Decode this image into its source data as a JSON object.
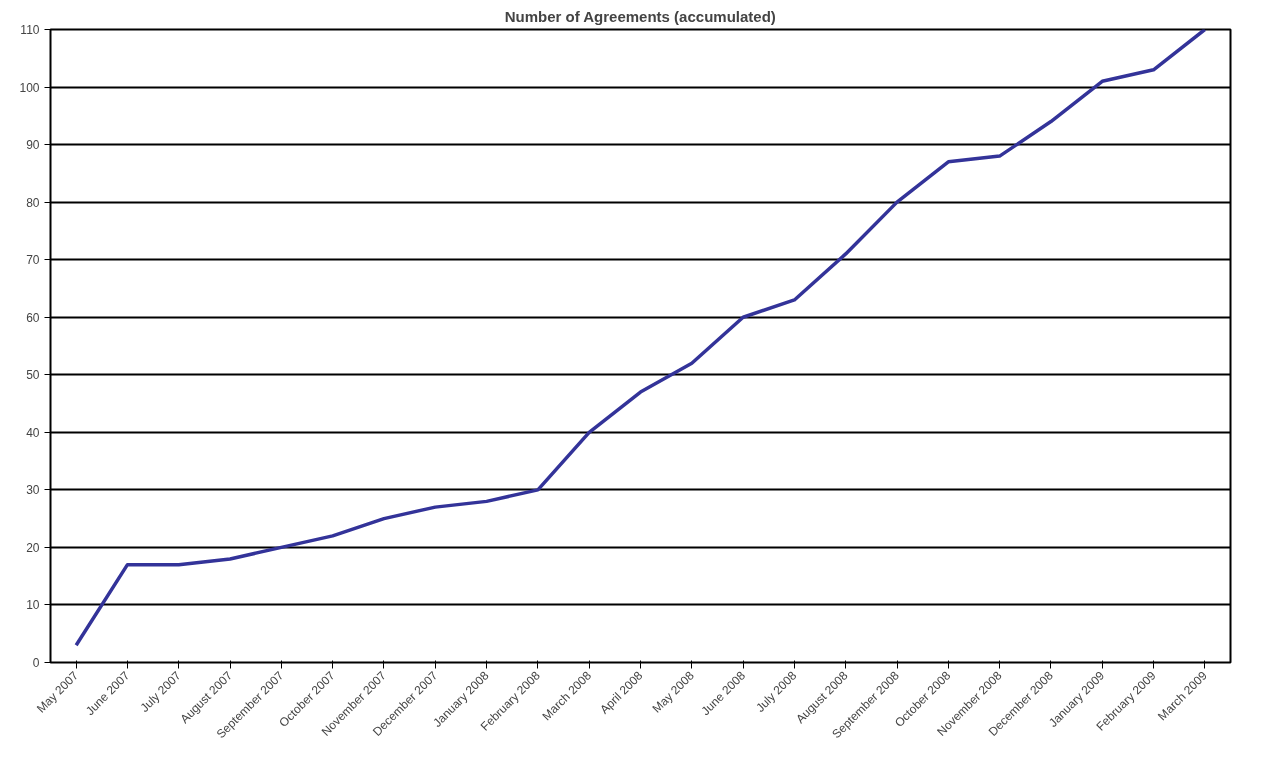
{
  "chart_data": {
    "type": "line",
    "title": "Number of Agreements (accumulated)",
    "categories": [
      "May 2007",
      "June 2007",
      "July 2007",
      "August 2007",
      "September 2007",
      "October 2007",
      "November 2007",
      "December 2007",
      "January 2008",
      "February 2008",
      "March 2008",
      "April 2008",
      "May 2008",
      "June 2008",
      "July 2008",
      "August 2008",
      "September 2008",
      "October 2008",
      "November 2008",
      "December 2008",
      "January 2009",
      "February 2009",
      "March 2009"
    ],
    "series": [
      {
        "color": "#333399",
        "values": [
          3,
          17,
          17,
          18,
          20,
          22,
          25,
          27,
          28,
          30,
          40,
          47,
          52,
          60,
          63,
          71,
          80,
          87,
          88,
          94,
          101,
          103,
          110
        ]
      }
    ],
    "ylim": [
      0,
      110
    ],
    "yticks": [
      0,
      10,
      20,
      30,
      40,
      50,
      60,
      70,
      80,
      90,
      100,
      110
    ],
    "grid": "y",
    "marker": "none",
    "line_style": "solid"
  }
}
